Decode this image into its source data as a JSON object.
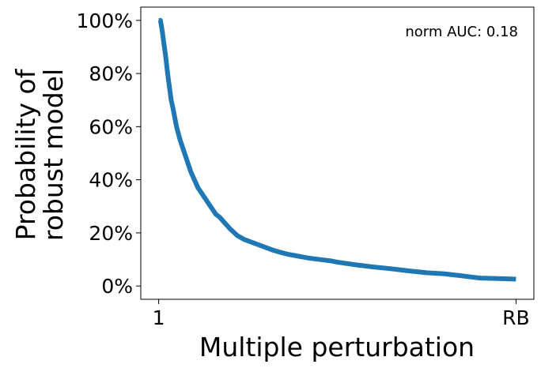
{
  "chart_data": {
    "type": "line",
    "title": "",
    "xlabel": "Multiple perturbation",
    "ylabel_lines": [
      "Probability of",
      "robust model"
    ],
    "x_tick_labels": [
      "1",
      "RB"
    ],
    "y_ticks": [
      0,
      20,
      40,
      60,
      80,
      100
    ],
    "y_tick_labels": [
      "0%",
      "20%",
      "40%",
      "60%",
      "80%",
      "100%"
    ],
    "ylim": [
      -5,
      105
    ],
    "xlim": [
      -0.05,
      1.05
    ],
    "grid": false,
    "annotation": "norm AUC: 0.18",
    "series": [
      {
        "color": "#1f77b4",
        "x": [
          0,
          0.005,
          0.01,
          0.015,
          0.02,
          0.025,
          0.03,
          0.035,
          0.04,
          0.05,
          0.06,
          0.07,
          0.08,
          0.09,
          0.1,
          0.11,
          0.12,
          0.13,
          0.14,
          0.15,
          0.16,
          0.17,
          0.18,
          0.2,
          0.22,
          0.24,
          0.26,
          0.28,
          0.3,
          0.32,
          0.34,
          0.36,
          0.38,
          0.4,
          0.42,
          0.45,
          0.48,
          0.5,
          0.55,
          0.6,
          0.65,
          0.7,
          0.75,
          0.8,
          0.85,
          0.88,
          0.9,
          0.95,
          1.0
        ],
        "y": [
          100,
          100,
          96,
          91,
          86,
          80,
          75,
          70,
          67,
          60,
          55,
          51,
          47,
          43,
          40,
          37,
          35,
          33,
          31,
          29,
          27,
          26,
          24.5,
          21.5,
          19,
          17.5,
          16.5,
          15.5,
          14.5,
          13.5,
          12.7,
          12,
          11.5,
          11,
          10.5,
          10,
          9.5,
          9,
          8,
          7.2,
          6.5,
          5.7,
          5,
          4.6,
          3.8,
          3.3,
          3,
          2.8,
          2.6
        ]
      }
    ]
  }
}
